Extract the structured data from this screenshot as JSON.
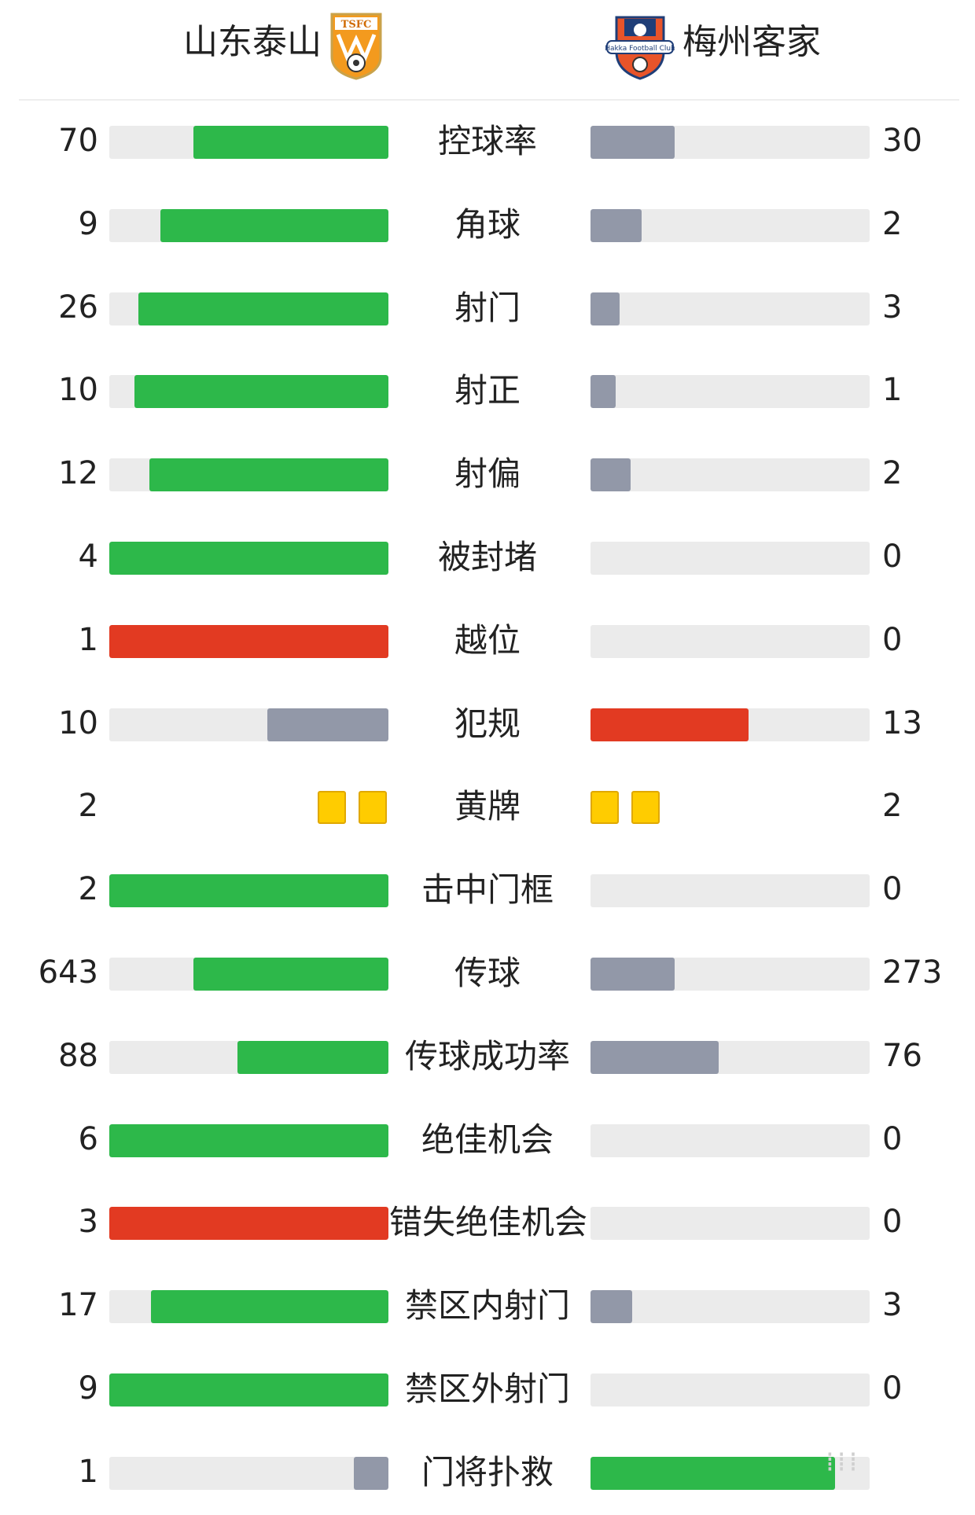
{
  "header": {
    "home_team": "山东泰山",
    "away_team": "梅州客家",
    "home_crest_text": "TSFC",
    "away_crest_text": "Hakka Football Club"
  },
  "colors": {
    "green": "#2db84a",
    "red": "#e23a22",
    "gray": "#9298a8",
    "track": "#ebebeb",
    "yellow_card": "#ffcc00"
  },
  "stats": [
    {
      "label": "控球率",
      "home": "70",
      "away": "30",
      "home_share": 0.7,
      "away_share": 0.3,
      "home_color": "green",
      "away_color": "gray"
    },
    {
      "label": "角球",
      "home": "9",
      "away": "2",
      "home_share": 0.818,
      "away_share": 0.182,
      "home_color": "green",
      "away_color": "gray"
    },
    {
      "label": "射门",
      "home": "26",
      "away": "3",
      "home_share": 0.897,
      "away_share": 0.103,
      "home_color": "green",
      "away_color": "gray"
    },
    {
      "label": "射正",
      "home": "10",
      "away": "1",
      "home_share": 0.909,
      "away_share": 0.091,
      "home_color": "green",
      "away_color": "gray"
    },
    {
      "label": "射偏",
      "home": "12",
      "away": "2",
      "home_share": 0.857,
      "away_share": 0.143,
      "home_color": "green",
      "away_color": "gray"
    },
    {
      "label": "被封堵",
      "home": "4",
      "away": "0",
      "home_share": 1.0,
      "away_share": 0.0,
      "home_color": "green",
      "away_color": "gray"
    },
    {
      "label": "越位",
      "home": "1",
      "away": "0",
      "home_share": 1.0,
      "away_share": 0.0,
      "home_color": "red",
      "away_color": "gray"
    },
    {
      "label": "犯规",
      "home": "10",
      "away": "13",
      "home_share": 0.435,
      "away_share": 0.565,
      "home_color": "gray",
      "away_color": "red"
    },
    {
      "label": "黄牌",
      "home": "2",
      "away": "2",
      "home_cards": 2,
      "away_cards": 2
    },
    {
      "label": "击中门框",
      "home": "2",
      "away": "0",
      "home_share": 1.0,
      "away_share": 0.0,
      "home_color": "green",
      "away_color": "gray"
    },
    {
      "label": "传球",
      "home": "643",
      "away": "273",
      "home_share": 0.7,
      "away_share": 0.3,
      "home_color": "green",
      "away_color": "gray"
    },
    {
      "label": "传球成功率",
      "home": "88",
      "away": "76",
      "home_share": 0.54,
      "away_share": 0.46,
      "home_color": "green",
      "away_color": "gray"
    },
    {
      "label": "绝佳机会",
      "home": "6",
      "away": "0",
      "home_share": 1.0,
      "away_share": 0.0,
      "home_color": "green",
      "away_color": "gray"
    },
    {
      "label": "错失绝佳机会",
      "home": "3",
      "away": "0",
      "home_share": 1.0,
      "away_share": 0.0,
      "home_color": "red",
      "away_color": "gray"
    },
    {
      "label": "禁区内射门",
      "home": "17",
      "away": "3",
      "home_share": 0.85,
      "away_share": 0.15,
      "home_color": "green",
      "away_color": "gray"
    },
    {
      "label": "禁区外射门",
      "home": "9",
      "away": "0",
      "home_share": 1.0,
      "away_share": 0.0,
      "home_color": "green",
      "away_color": "gray"
    },
    {
      "label": "门将扑救",
      "home": "1",
      "away": "",
      "home_share": 0.125,
      "away_share": 0.875,
      "home_color": "gray",
      "away_color": "green"
    }
  ]
}
